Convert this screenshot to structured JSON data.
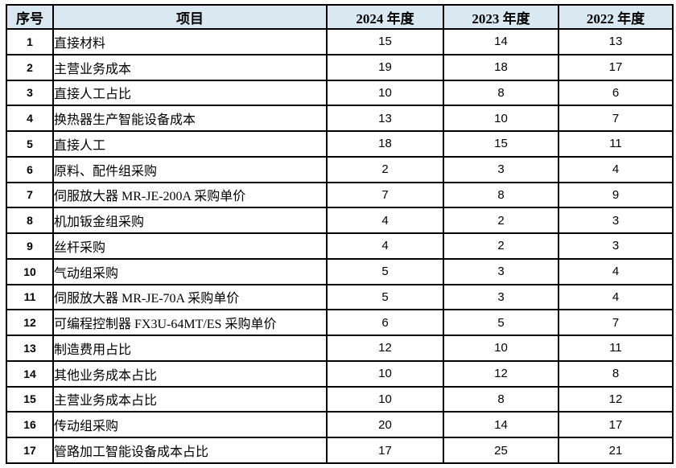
{
  "colors": {
    "header_bg": "#d9e8f1",
    "grid_border": "#000000",
    "row_bg": "#ffffff",
    "text": "#000000"
  },
  "table": {
    "columns": [
      {
        "key": "index",
        "label": "序号"
      },
      {
        "key": "item",
        "label": "项目"
      },
      {
        "key": "y2024",
        "label": "2024 年度"
      },
      {
        "key": "y2023",
        "label": "2023 年度"
      },
      {
        "key": "y2022",
        "label": "2022 年度"
      }
    ],
    "rows": [
      {
        "index": "1",
        "item": "直接材料",
        "y2024": "15",
        "y2023": "14",
        "y2022": "13"
      },
      {
        "index": "2",
        "item": "主营业务成本",
        "y2024": "19",
        "y2023": "18",
        "y2022": "17"
      },
      {
        "index": "3",
        "item": "直接人工占比",
        "y2024": "10",
        "y2023": "8",
        "y2022": "6"
      },
      {
        "index": "4",
        "item": "换热器生产智能设备成本",
        "y2024": "13",
        "y2023": "10",
        "y2022": "7"
      },
      {
        "index": "5",
        "item": "直接人工",
        "y2024": "18",
        "y2023": "15",
        "y2022": "11"
      },
      {
        "index": "6",
        "item": "原料、配件组采购",
        "y2024": "2",
        "y2023": "3",
        "y2022": "4"
      },
      {
        "index": "7",
        "item": "伺服放大器 MR-JE-200A 采购单价",
        "y2024": "7",
        "y2023": "8",
        "y2022": "9"
      },
      {
        "index": "8",
        "item": "机加钣金组采购",
        "y2024": "4",
        "y2023": "2",
        "y2022": "3"
      },
      {
        "index": "9",
        "item": "丝杆采购",
        "y2024": "4",
        "y2023": "2",
        "y2022": "3"
      },
      {
        "index": "10",
        "item": "气动组采购",
        "y2024": "5",
        "y2023": "3",
        "y2022": "4"
      },
      {
        "index": "11",
        "item": "伺服放大器 MR-JE-70A 采购单价",
        "y2024": "5",
        "y2023": "3",
        "y2022": "4"
      },
      {
        "index": "12",
        "item": "可编程控制器 FX3U-64MT/ES 采购单价",
        "y2024": "6",
        "y2023": "5",
        "y2022": "7"
      },
      {
        "index": "13",
        "item": "制造费用占比",
        "y2024": "12",
        "y2023": "10",
        "y2022": "11"
      },
      {
        "index": "14",
        "item": "其他业务成本占比",
        "y2024": "10",
        "y2023": "12",
        "y2022": "8"
      },
      {
        "index": "15",
        "item": "主营业务成本占比",
        "y2024": "10",
        "y2023": "8",
        "y2022": "12"
      },
      {
        "index": "16",
        "item": "传动组采购",
        "y2024": "20",
        "y2023": "14",
        "y2022": "17"
      },
      {
        "index": "17",
        "item": "管路加工智能设备成本占比",
        "y2024": "17",
        "y2023": "25",
        "y2022": "21"
      }
    ]
  }
}
